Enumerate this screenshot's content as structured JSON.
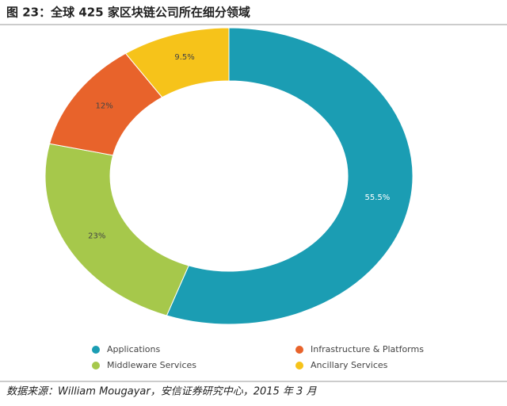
{
  "chart_data": {
    "type": "donut",
    "title": "图 23：全球 425 家区块链公司所在细分领域",
    "source": "数据来源：William Mougayar，安信证券研究中心，2015 年 3 月",
    "categories": [
      "Applications",
      "Middleware Services",
      "Infrastructure & Platforms",
      "Ancillary Services"
    ],
    "values": [
      55.5,
      23,
      12,
      9.5
    ],
    "value_labels": [
      "55.5%",
      "23%",
      "12%",
      "9.5%"
    ],
    "colors": [
      "#1b9db3",
      "#a6c84b",
      "#e8632b",
      "#f6c31a"
    ]
  }
}
